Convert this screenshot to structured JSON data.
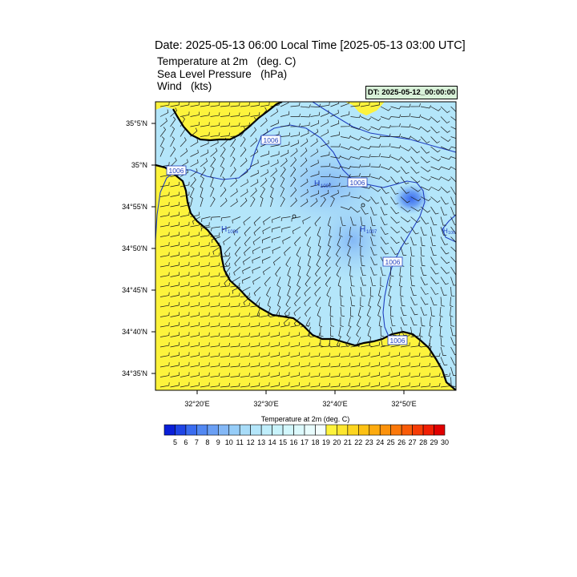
{
  "header": {
    "title": "Date: 2025-05-13  06:00 Local Time [2025-05-13  03:00 UTC]",
    "fields": [
      {
        "name": "Temperature at 2m",
        "unit": "(deg. C)"
      },
      {
        "name": "Sea Level Pressure",
        "unit": "(hPa)"
      },
      {
        "name": "Wind",
        "unit": "(kts)"
      }
    ],
    "dt_label": "DT: 2025-05-12_00:00:00"
  },
  "map": {
    "y_ticks": [
      "35°5'N",
      "35°N",
      "34°55'N",
      "34°50'N",
      "34°45'N",
      "34°40'N",
      "34°35'N"
    ],
    "x_ticks": [
      "32°20'E",
      "32°30'E",
      "32°40'E",
      "32°50'E"
    ],
    "isobar_labels": [
      "1006",
      "1006",
      "1006",
      "1006",
      "1006"
    ],
    "pressure_centers": [
      {
        "letter": "H",
        "value": "1007"
      },
      {
        "letter": "H",
        "value": "1006"
      },
      {
        "letter": "H",
        "value": "1007"
      },
      {
        "letter": "H",
        "value": "100"
      }
    ],
    "colors": {
      "land_cold": "#a8e6f7",
      "land_cool": "#7ec8f2",
      "sea": "#fdf33c",
      "isobar": "#1f3fbf",
      "coast": "#000000"
    }
  },
  "colorbar": {
    "title": "Temperature at 2m  (deg. C)",
    "labels": [
      "5",
      "6",
      "7",
      "8",
      "9",
      "10",
      "11",
      "12",
      "13",
      "14",
      "15",
      "16",
      "17",
      "18",
      "19",
      "20",
      "21",
      "22",
      "23",
      "24",
      "25",
      "26",
      "27",
      "28",
      "29",
      "30"
    ],
    "colors": [
      "#0a1fd8",
      "#1f45e6",
      "#3a6cf0",
      "#5288f2",
      "#6a9ff4",
      "#84b8f6",
      "#96cdf8",
      "#a8dcf8",
      "#b4e6fa",
      "#bfeefb",
      "#c8f3fb",
      "#d2f7fc",
      "#dcf9fc",
      "#e8fcfd",
      "#f3fefe",
      "#fdf33c",
      "#fde62e",
      "#fdd51f",
      "#fdc114",
      "#fdab0f",
      "#fc920c",
      "#fb780a",
      "#f95b08",
      "#f63c06",
      "#f11f04",
      "#e00000"
    ]
  }
}
